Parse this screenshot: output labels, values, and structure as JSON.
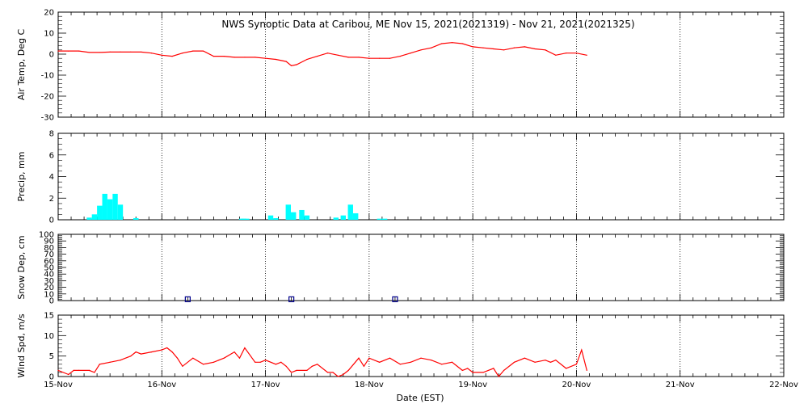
{
  "title": "NWS Synoptic Data at Caribou, ME    Nov 15, 2021(2021319) - Nov 21, 2021(2021325)",
  "xlabel": "Date (EST)",
  "x_ticks": [
    "15-Nov",
    "16-Nov",
    "17-Nov",
    "18-Nov",
    "19-Nov",
    "20-Nov",
    "21-Nov",
    "22-Nov"
  ],
  "colors": {
    "temp": "#ff0000",
    "precip": "#00ffff",
    "snow": "#00008b",
    "wind": "#ff0000"
  },
  "chart_data": [
    {
      "type": "line",
      "ylabel": "Air Temp, Deg C",
      "ylim": [
        -30,
        20
      ],
      "yticks": [
        -30,
        -20,
        -10,
        0,
        10,
        20
      ],
      "x": [
        0.0,
        0.1,
        0.2,
        0.3,
        0.4,
        0.5,
        0.6,
        0.7,
        0.8,
        0.9,
        1.0,
        1.1,
        1.2,
        1.3,
        1.4,
        1.5,
        1.6,
        1.7,
        1.8,
        1.9,
        2.0,
        2.1,
        2.2,
        2.25,
        2.3,
        2.4,
        2.5,
        2.6,
        2.7,
        2.8,
        2.9,
        3.0,
        3.1,
        3.2,
        3.3,
        3.4,
        3.5,
        3.6,
        3.7,
        3.8,
        3.9,
        4.0,
        4.1,
        4.2,
        4.3,
        4.4,
        4.5,
        4.6,
        4.7,
        4.8,
        4.9,
        5.0,
        5.1
      ],
      "y": [
        1.5,
        1.5,
        1.5,
        0.8,
        0.8,
        1.0,
        1.0,
        1.0,
        1.0,
        0.5,
        -0.5,
        -1.0,
        0.5,
        1.5,
        1.5,
        -1.0,
        -1.0,
        -1.5,
        -1.5,
        -1.5,
        -2.0,
        -2.5,
        -3.5,
        -5.5,
        -5.0,
        -2.5,
        -1.0,
        0.5,
        -0.5,
        -1.5,
        -1.5,
        -2.0,
        -2.0,
        -2.0,
        -1.0,
        0.5,
        2.0,
        3.0,
        5.0,
        5.5,
        5.0,
        3.5,
        3.0,
        2.5,
        2.0,
        3.0,
        3.5,
        2.5,
        2.0,
        -0.5,
        0.5,
        0.5,
        -0.5
      ]
    },
    {
      "type": "bar",
      "ylabel": "Precip, mm",
      "ylim": [
        0,
        8
      ],
      "yticks": [
        0,
        2,
        4,
        6,
        8
      ],
      "x": [
        0.3,
        0.35,
        0.4,
        0.45,
        0.5,
        0.55,
        0.6,
        0.75,
        0.75,
        1.77,
        1.79,
        1.82,
        2.05,
        2.1,
        2.22,
        2.27,
        2.35,
        2.4,
        2.68,
        2.75,
        2.82,
        2.87,
        3.1,
        3.15
      ],
      "values": [
        0.2,
        0.5,
        1.3,
        2.4,
        1.9,
        2.4,
        1.4,
        0.15,
        0.15,
        0.1,
        0.1,
        0.1,
        0.4,
        0.15,
        1.4,
        0.7,
        0.9,
        0.4,
        0.2,
        0.4,
        1.4,
        0.6,
        0.1,
        0.1
      ]
    },
    {
      "type": "scatter",
      "ylabel": "Snow Dep, cm",
      "ylim": [
        0,
        100
      ],
      "yticks": [
        0,
        10,
        20,
        30,
        40,
        50,
        60,
        70,
        80,
        90,
        100
      ],
      "x": [
        1.25,
        2.25,
        3.25
      ],
      "y": [
        2,
        2,
        2
      ]
    },
    {
      "type": "line",
      "ylabel": "Wind Spd, m/s",
      "ylim": [
        0,
        15
      ],
      "yticks": [
        0,
        5,
        10,
        15
      ],
      "x": [
        0.0,
        0.1,
        0.15,
        0.2,
        0.3,
        0.35,
        0.4,
        0.5,
        0.6,
        0.7,
        0.75,
        0.8,
        0.9,
        1.0,
        1.05,
        1.1,
        1.15,
        1.2,
        1.3,
        1.4,
        1.5,
        1.55,
        1.6,
        1.7,
        1.75,
        1.8,
        1.9,
        1.95,
        2.0,
        2.1,
        2.15,
        2.2,
        2.25,
        2.3,
        2.4,
        2.45,
        2.5,
        2.6,
        2.65,
        2.7,
        2.75,
        2.8,
        2.9,
        2.95,
        3.0,
        3.1,
        3.2,
        3.3,
        3.4,
        3.5,
        3.6,
        3.7,
        3.8,
        3.9,
        3.95,
        4.0,
        4.1,
        4.2,
        4.25,
        4.3,
        4.4,
        4.5,
        4.6,
        4.7,
        4.75,
        4.8,
        4.9,
        5.0,
        5.05,
        5.1
      ],
      "y": [
        1.5,
        0.5,
        1.5,
        1.5,
        1.5,
        1.0,
        3.0,
        3.5,
        4.0,
        5.0,
        6.0,
        5.5,
        6.0,
        6.5,
        7.0,
        6.0,
        4.5,
        2.5,
        4.5,
        3.0,
        3.5,
        4.0,
        4.5,
        6.0,
        4.5,
        7.0,
        3.5,
        3.5,
        4.0,
        3.0,
        3.5,
        2.5,
        1.0,
        1.5,
        1.5,
        2.5,
        3.0,
        1.0,
        1.0,
        0.0,
        0.5,
        1.5,
        4.5,
        2.5,
        4.5,
        3.5,
        4.5,
        3.0,
        3.5,
        4.5,
        4.0,
        3.0,
        3.5,
        1.5,
        2.0,
        1.0,
        1.0,
        2.0,
        0.0,
        1.5,
        3.5,
        4.5,
        3.5,
        4.0,
        3.5,
        4.0,
        2.0,
        3.0,
        6.5,
        1.5
      ]
    }
  ]
}
